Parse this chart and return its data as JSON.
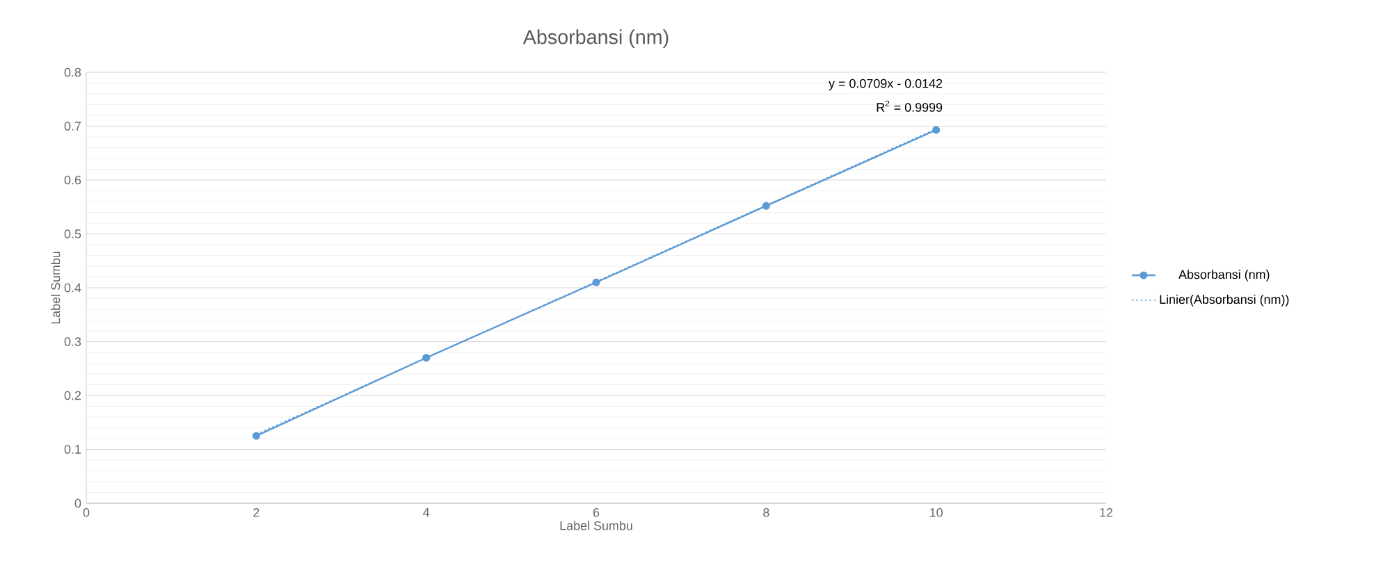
{
  "chart_data": {
    "type": "line",
    "title": "Absorbansi (nm)",
    "xlabel": "Label Sumbu",
    "ylabel": "Label Sumbu",
    "x": [
      2,
      4,
      6,
      8,
      10
    ],
    "series": [
      {
        "name": "Absorbansi (nm)",
        "color": "#5b9bd5",
        "values": [
          0.125,
          0.27,
          0.41,
          0.552,
          0.693
        ],
        "marker": "circle",
        "line_style": "solid"
      },
      {
        "name": "Linier(Absorbansi (nm))",
        "type": "line",
        "color": "#5b9bd5",
        "x": [
          2,
          10
        ],
        "values": [
          0.128,
          0.695
        ],
        "marker": "none",
        "line_style": "dotted"
      }
    ],
    "annotations": [
      "y = 0.0709x - 0.0142",
      "R$^{2}$ = 0.9999"
    ],
    "xlim": [
      0,
      12
    ],
    "xticks": [
      0,
      2,
      4,
      6,
      8,
      10,
      12
    ],
    "ylim": [
      0,
      0.8
    ],
    "yticks": [
      0,
      0.1,
      0.2,
      0.3,
      0.4,
      0.5,
      0.6,
      0.7,
      0.8
    ],
    "grid": "y",
    "legend": "right"
  }
}
